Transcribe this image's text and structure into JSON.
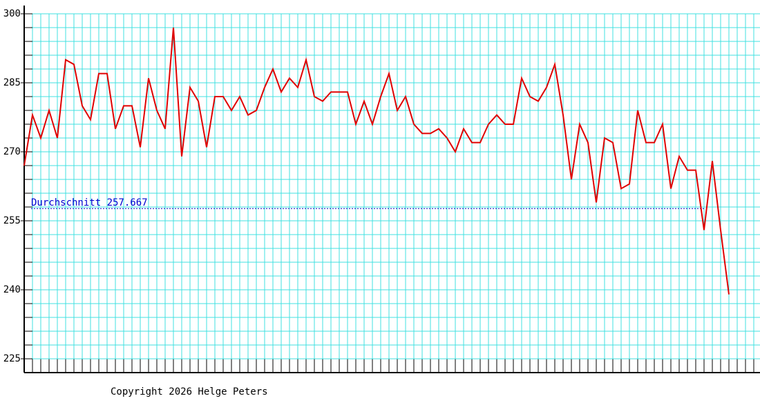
{
  "chart_data": {
    "type": "line",
    "categories": [
      null,
      null,
      null,
      null,
      null,
      null,
      null,
      null,
      null,
      null,
      null,
      null,
      null,
      null,
      null,
      null,
      null,
      null,
      null,
      null,
      null,
      null,
      null,
      null,
      null,
      null,
      null,
      null,
      null,
      null,
      null,
      null,
      null,
      null,
      null,
      null,
      null,
      null,
      null,
      null,
      null,
      null,
      null,
      null,
      null,
      null,
      null,
      null,
      null,
      null,
      null,
      null,
      null,
      null,
      null,
      null,
      null,
      null,
      null,
      null,
      null,
      null,
      null,
      null,
      null,
      null,
      null,
      null,
      null,
      null,
      null,
      null,
      null,
      null,
      null,
      null,
      null,
      null,
      null,
      null,
      null,
      null,
      null,
      null,
      null,
      null
    ],
    "series": [
      {
        "color": "#e00000",
        "values": [
          267,
          278,
          273,
          279,
          273,
          290,
          289,
          280,
          277,
          287,
          287,
          275,
          280,
          280,
          271,
          286,
          279,
          275,
          297,
          269,
          284,
          281,
          271,
          282,
          282,
          279,
          282,
          278,
          279,
          284,
          288,
          283,
          286,
          284,
          290,
          282,
          281,
          283,
          283,
          283,
          276,
          281,
          276,
          282,
          287,
          279,
          282,
          276,
          274,
          274,
          275,
          273,
          270,
          275,
          272,
          272,
          276,
          278,
          276,
          276,
          286,
          282,
          281,
          284,
          289,
          278,
          264,
          276,
          272,
          259,
          273,
          272,
          262,
          263,
          279,
          272,
          272,
          276,
          262,
          269,
          266,
          266,
          253,
          268,
          253,
          239
        ]
      }
    ],
    "ylim": [
      222,
      300
    ],
    "yticks": [
      225,
      240,
      255,
      270,
      285,
      300
    ],
    "grid_yticks": [
      222,
      225,
      228,
      231,
      234,
      237,
      240,
      243,
      246,
      249,
      252,
      255,
      258,
      261,
      264,
      267,
      270,
      273,
      276,
      279,
      282,
      285,
      288,
      291,
      294,
      297,
      300
    ],
    "grid": true,
    "average": 257.667,
    "average_label": "Durchschnitt 257.667",
    "copyright": "Copyright 2026 Helge Peters"
  }
}
